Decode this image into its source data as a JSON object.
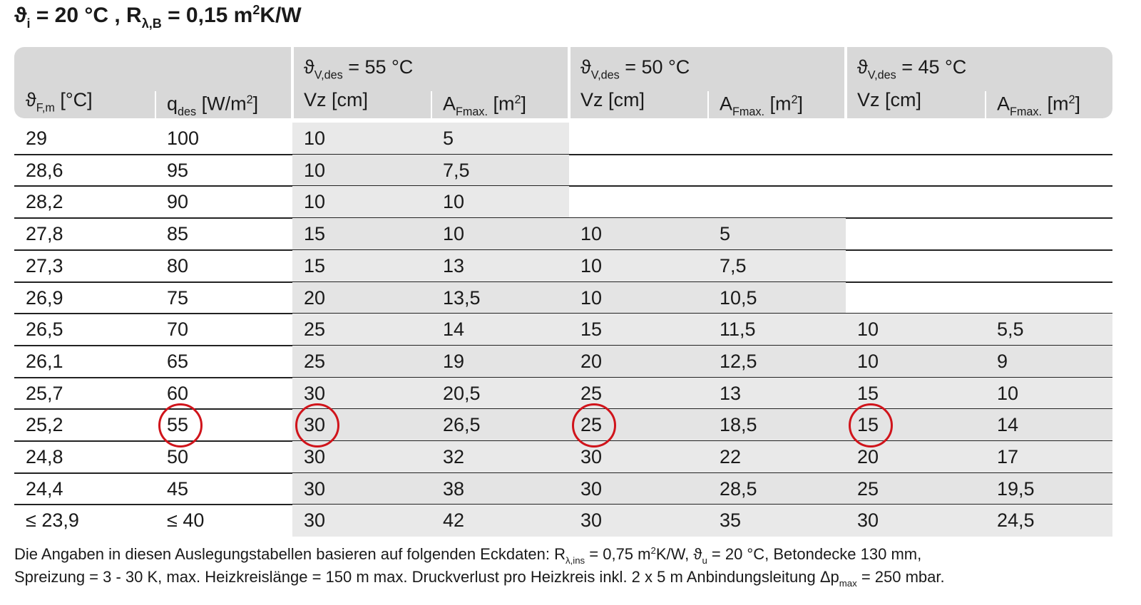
{
  "title": [
    {
      "t": "ϑ"
    },
    {
      "sub": "i"
    },
    {
      "t": " = 20 °C , R"
    },
    {
      "sub": "λ,B"
    },
    {
      "t": " = 0,15 m"
    },
    {
      "sup": "2"
    },
    {
      "t": "K/W"
    }
  ],
  "table": {
    "groups": [
      [
        {
          "t": "ϑ"
        },
        {
          "sub": "V,des"
        },
        {
          "t": " = 55 °C"
        }
      ],
      [
        {
          "t": "ϑ"
        },
        {
          "sub": "V,des"
        },
        {
          "t": " = 50 °C"
        }
      ],
      [
        {
          "t": "ϑ"
        },
        {
          "sub": "V,des"
        },
        {
          "t": " = 45 °C"
        }
      ]
    ],
    "columns": [
      [
        {
          "t": "ϑ"
        },
        {
          "sub": "F,m"
        },
        {
          "t": " [°C]"
        }
      ],
      [
        {
          "t": "q"
        },
        {
          "sub": "des"
        },
        {
          "t": " [W/m"
        },
        {
          "sup": "2"
        },
        {
          "t": "]"
        }
      ],
      [
        {
          "t": "Vz [cm]"
        }
      ],
      [
        {
          "t": "A"
        },
        {
          "sub": "Fmax."
        },
        {
          "t": " [m"
        },
        {
          "sup": "2"
        },
        {
          "t": "]"
        }
      ],
      [
        {
          "t": "Vz [cm]"
        }
      ],
      [
        {
          "t": "A"
        },
        {
          "sub": "Fmax."
        },
        {
          "t": " [m"
        },
        {
          "sup": "2"
        },
        {
          "t": "]"
        }
      ],
      [
        {
          "t": "Vz [cm]"
        }
      ],
      [
        {
          "t": "A"
        },
        {
          "sub": "Fmax."
        },
        {
          "t": " [m"
        },
        {
          "sup": "2"
        },
        {
          "t": "]"
        }
      ]
    ],
    "rows": [
      [
        "29",
        "100",
        "10",
        "5",
        null,
        null,
        null,
        null
      ],
      [
        "28,6",
        "95",
        "10",
        "7,5",
        null,
        null,
        null,
        null
      ],
      [
        "28,2",
        "90",
        "10",
        "10",
        null,
        null,
        null,
        null
      ],
      [
        "27,8",
        "85",
        "15",
        "10",
        "10",
        "5",
        null,
        null
      ],
      [
        "27,3",
        "80",
        "15",
        "13",
        "10",
        "7,5",
        null,
        null
      ],
      [
        "26,9",
        "75",
        "20",
        "13,5",
        "10",
        "10,5",
        null,
        null
      ],
      [
        "26,5",
        "70",
        "25",
        "14",
        "15",
        "11,5",
        "10",
        "5,5"
      ],
      [
        "26,1",
        "65",
        "25",
        "19",
        "20",
        "12,5",
        "10",
        "9"
      ],
      [
        "25,7",
        "60",
        "30",
        "20,5",
        "25",
        "13",
        "15",
        "10"
      ],
      [
        "25,2",
        "55",
        "30",
        "26,5",
        "25",
        "18,5",
        "15",
        "14"
      ],
      [
        "24,8",
        "50",
        "30",
        "32",
        "30",
        "22",
        "20",
        "17"
      ],
      [
        "24,4",
        "45",
        "30",
        "38",
        "30",
        "28,5",
        "25",
        "19,5"
      ],
      [
        "≤ 23,9",
        "≤ 40",
        "30",
        "42",
        "30",
        "35",
        "30",
        "24,5"
      ]
    ]
  },
  "footnote": [
    [
      {
        "t": "Die Angaben in diesen Auslegungstabellen basieren auf folgenden Eckdaten: R"
      },
      {
        "sub": "λ,ins"
      },
      {
        "t": " = 0,75 m"
      },
      {
        "sup": "2"
      },
      {
        "t": "K/W, ϑ"
      },
      {
        "sub": "u"
      },
      {
        "t": " = 20 °C, Betondecke 130 mm,"
      }
    ],
    [
      {
        "t": "Spreizung = 3 - 30 K, max. Heizkreislänge = 150 m max. Druckverlust pro Heizkreis inkl. 2 x 5 m Anbindungsleitung Δp"
      },
      {
        "sub": "max"
      },
      {
        "t": " = 250 mbar."
      }
    ]
  ]
}
